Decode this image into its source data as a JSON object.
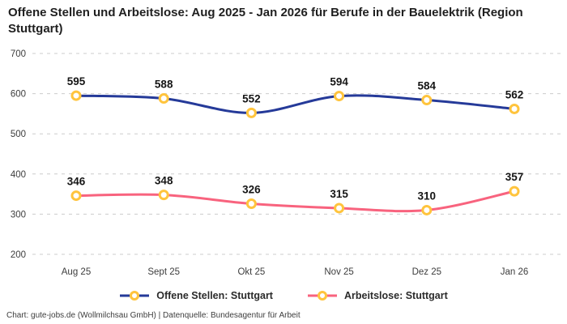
{
  "title": "Offene Stellen und Arbeitslose: Aug 2025 - Jan 2026 für Berufe in der Bauelektrik (Region Stuttgart)",
  "footer": "Chart: gute-jobs.de (Wollmilchsau GmbH) | Datenquelle: Bundesagentur für Arbeit",
  "colors": {
    "series1": "#253a99",
    "series2": "#f8637e",
    "marker_ring": "#ffc43d",
    "marker_fill": "#ffffff",
    "gridline": "#cccccc",
    "tick_text": "#3d3d3d",
    "label_text": "#151515"
  },
  "chart_data": {
    "type": "line",
    "categories": [
      "Aug 25",
      "Sept 25",
      "Okt 25",
      "Nov 25",
      "Dez 25",
      "Jan 26"
    ],
    "series": [
      {
        "name": "Offene Stellen: Stuttgart",
        "values": [
          595,
          588,
          552,
          594,
          584,
          562
        ],
        "color": "#253a99"
      },
      {
        "name": "Arbeitslose: Stuttgart",
        "values": [
          346,
          348,
          326,
          315,
          310,
          357
        ],
        "color": "#f8637e"
      }
    ],
    "title": "Offene Stellen und Arbeitslose: Aug 2025 - Jan 2026 für Berufe in der Bauelektrik (Region Stuttgart)",
    "xlabel": "",
    "ylabel": "",
    "ylim": [
      200,
      700
    ],
    "yticks": [
      200,
      300,
      400,
      500,
      600,
      700
    ],
    "grid": true,
    "grid_style": "dashed",
    "legend_position": "bottom",
    "marker": "ring",
    "marker_color": "#ffc43d",
    "data_labels": true
  }
}
